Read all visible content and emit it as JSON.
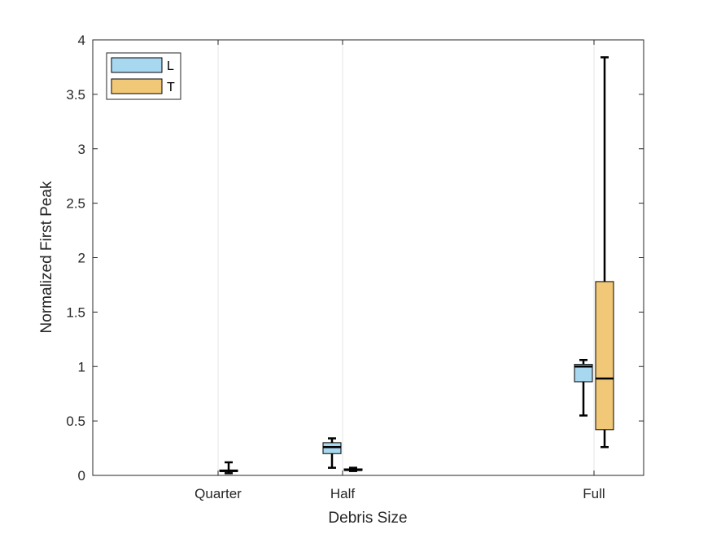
{
  "chart_data": {
    "type": "boxplot",
    "title": "",
    "xlabel": "Debris Size",
    "ylabel": "Normalized First Peak",
    "ylim": [
      0,
      4
    ],
    "yticks": [
      0,
      0.5,
      1,
      1.5,
      2,
      2.5,
      3,
      3.5,
      4
    ],
    "ytick_labels": [
      "0",
      "0.5",
      "1",
      "1.5",
      "2",
      "2.5",
      "3",
      "3.5",
      "4"
    ],
    "categories": [
      "Quarter",
      "Half",
      "Full"
    ],
    "grid": "vertical lines at categories",
    "legend_position": "top-left",
    "series": [
      {
        "name": "L",
        "color": "#a8d8f0",
        "boxes": [
          null,
          {
            "category": "Half",
            "min": 0.07,
            "q1": 0.2,
            "median": 0.26,
            "q3": 0.3,
            "max": 0.34
          },
          {
            "category": "Full",
            "min": 0.55,
            "q1": 0.86,
            "median": 1.0,
            "q3": 1.02,
            "max": 1.06
          }
        ]
      },
      {
        "name": "T",
        "color": "#f0c878",
        "boxes": [
          {
            "category": "Quarter",
            "min": 0.02,
            "q1": 0.035,
            "median": 0.04,
            "q3": 0.05,
            "max": 0.12
          },
          {
            "category": "Half",
            "min": 0.04,
            "q1": 0.045,
            "median": 0.05,
            "q3": 0.06,
            "max": 0.07
          },
          {
            "category": "Full",
            "min": 0.26,
            "q1": 0.42,
            "median": 0.89,
            "q3": 1.78,
            "max": 3.84
          }
        ]
      }
    ]
  }
}
